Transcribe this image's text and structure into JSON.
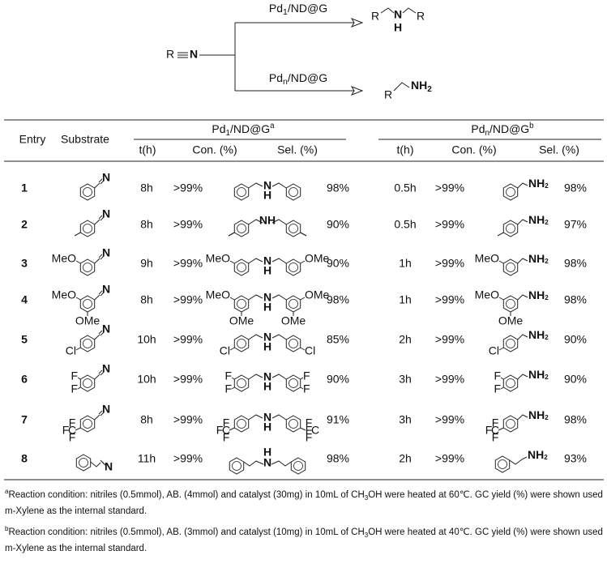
{
  "scheme": {
    "reactant": [
      "R",
      "N"
    ],
    "catalyst_top": {
      "base": "Pd",
      "sub": "1",
      "rest": "/ND@G"
    },
    "catalyst_bottom": {
      "base": "Pd",
      "sub": "n",
      "rest": "/ND@G"
    },
    "product_top": [
      "R",
      "N",
      "H",
      "R"
    ],
    "product_bottom": [
      "R",
      "NH",
      "2"
    ]
  },
  "header": {
    "entry": "Entry",
    "substrate": "Substrate",
    "group1": {
      "base": "Pd",
      "sub": "1",
      "rest": "/ND@G",
      "note": "a"
    },
    "group2": {
      "base": "Pd",
      "sub": "n",
      "rest": "/ND@G",
      "note": "b"
    },
    "columns": [
      "t(h)",
      "Con. (%)",
      "Sel. (%)"
    ]
  },
  "rows": [
    {
      "entry": "1",
      "substrate": [
        "N"
      ],
      "t1": "8h",
      "con1": ">99%",
      "product1": [
        "N",
        "H"
      ],
      "sel1": "98%",
      "t2": "0.5h",
      "con2": ">99%",
      "product2": [
        "NH",
        "2"
      ],
      "sel2": "98%"
    },
    {
      "entry": "2",
      "substrate": [
        "N"
      ],
      "t1": "8h",
      "con1": ">99%",
      "product1": [
        "NH"
      ],
      "sel1": "90%",
      "t2": "0.5h",
      "con2": ">99%",
      "product2": [
        "NH",
        "2"
      ],
      "sel2": "97%"
    },
    {
      "entry": "3",
      "substrate": [
        "MeO",
        "N"
      ],
      "t1": "9h",
      "con1": ">99%",
      "product1": [
        "MeO",
        "N",
        "H",
        "OMe"
      ],
      "sel1": "90%",
      "t2": "1h",
      "con2": ">99%",
      "product2": [
        "MeO",
        "NH",
        "2"
      ],
      "sel2": "98%"
    },
    {
      "entry": "4",
      "substrate": [
        "MeO",
        "OMe",
        "N"
      ],
      "t1": "8h",
      "con1": ">99%",
      "product1": [
        "MeO",
        "OMe",
        "N",
        "H",
        "OMe",
        "OMe"
      ],
      "sel1": "98%",
      "t2": "1h",
      "con2": ">99%",
      "product2": [
        "MeO",
        "OMe",
        "NH",
        "2"
      ],
      "sel2": "98%"
    },
    {
      "entry": "5",
      "substrate": [
        "Cl",
        "N"
      ],
      "t1": "10h",
      "con1": ">99%",
      "product1": [
        "Cl",
        "N",
        "H",
        "Cl"
      ],
      "sel1": "85%",
      "t2": "2h",
      "con2": ">99%",
      "product2": [
        "Cl",
        "NH",
        "2"
      ],
      "sel2": "90%"
    },
    {
      "entry": "6",
      "substrate": [
        "F",
        "F",
        "N"
      ],
      "t1": "10h",
      "con1": ">99%",
      "product1": [
        "F",
        "F",
        "N",
        "H",
        "F",
        "F"
      ],
      "sel1": "90%",
      "t2": "3h",
      "con2": ">99%",
      "product2": [
        "F",
        "F",
        "NH",
        "2"
      ],
      "sel2": "90%"
    },
    {
      "entry": "7",
      "substrate": [
        "F",
        "F",
        "C",
        "F",
        "N"
      ],
      "t1": "8h",
      "con1": ">99%",
      "product1": [
        "F",
        "F",
        "C",
        "F",
        "N",
        "H",
        "F",
        "C",
        "F",
        "F"
      ],
      "sel1": "91%",
      "t2": "3h",
      "con2": ">99%",
      "product2": [
        "F",
        "F",
        "C",
        "F",
        "NH",
        "2"
      ],
      "sel2": "98%"
    },
    {
      "entry": "8",
      "substrate": [
        "N"
      ],
      "t1": "11h",
      "con1": ">99%",
      "product1": [
        "H",
        "N"
      ],
      "sel1": "98%",
      "t2": "2h",
      "con2": ">99%",
      "product2": [
        "NH",
        "2"
      ],
      "sel2": "93%"
    }
  ],
  "footnotes": [
    {
      "mark": "a",
      "parts": [
        "Reaction condition: nitriles (0.5mmol), AB. (4mmol) and catalyst (30mg) in 10mL of CH",
        "3",
        "OH were heated at 60℃. GC yield (%) were shown used m-Xylene as the internal standard."
      ]
    },
    {
      "mark": "b",
      "parts": [
        "Reaction condition: nitriles (0.5mmol), AB. (3mmol) and catalyst (10mg) in 10mL of CH",
        "3",
        "OH were heated at 40℃. GC yield (%) were shown used m-Xylene as the internal standard."
      ]
    }
  ]
}
